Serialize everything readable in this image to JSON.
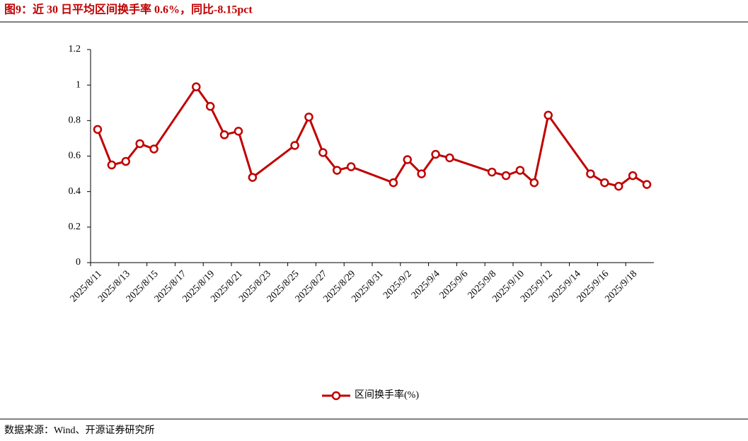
{
  "chart_data": {
    "type": "line",
    "title": "图9：近 30 日平均区间换手率 0.6%，同比-8.15pct",
    "source": "数据来源：Wind、开源证券研究所",
    "x": [
      "2025/8/11",
      "2025/8/12",
      "2025/8/13",
      "2025/8/14",
      "2025/8/15",
      "2025/8/18",
      "2025/8/19",
      "2025/8/20",
      "2025/8/21",
      "2025/8/22",
      "2025/8/25",
      "2025/8/26",
      "2025/8/27",
      "2025/8/28",
      "2025/8/29",
      "2025/9/1",
      "2025/9/2",
      "2025/9/3",
      "2025/9/4",
      "2025/9/5",
      "2025/9/8",
      "2025/9/9",
      "2025/9/10",
      "2025/9/11",
      "2025/9/12",
      "2025/9/15",
      "2025/9/16",
      "2025/9/17",
      "2025/9/18",
      "2025/9/19"
    ],
    "xlim": [
      "2025/8/11",
      "2025/9/19"
    ],
    "xticks": [
      "2025/8/11",
      "2025/8/13",
      "2025/8/15",
      "2025/8/17",
      "2025/8/19",
      "2025/8/21",
      "2025/8/23",
      "2025/8/25",
      "2025/8/27",
      "2025/8/29",
      "2025/8/31",
      "2025/9/2",
      "2025/9/4",
      "2025/9/6",
      "2025/9/8",
      "2025/9/10",
      "2025/9/12",
      "2025/9/14",
      "2025/9/16",
      "2025/9/18"
    ],
    "series": [
      {
        "name": "区间换手率(%)",
        "color": "#c00000",
        "values": [
          0.75,
          0.55,
          0.57,
          0.67,
          0.64,
          0.99,
          0.88,
          0.72,
          0.74,
          0.48,
          0.66,
          0.82,
          0.62,
          0.52,
          0.54,
          0.45,
          0.58,
          0.5,
          0.61,
          0.59,
          0.51,
          0.49,
          0.52,
          0.45,
          0.83,
          0.5,
          0.45,
          0.43,
          0.49,
          0.44
        ]
      }
    ],
    "ylim": [
      0,
      1.2
    ],
    "yticks": [
      0,
      0.2,
      0.4,
      0.6,
      0.8,
      1,
      1.2
    ],
    "legend": "bottom"
  }
}
